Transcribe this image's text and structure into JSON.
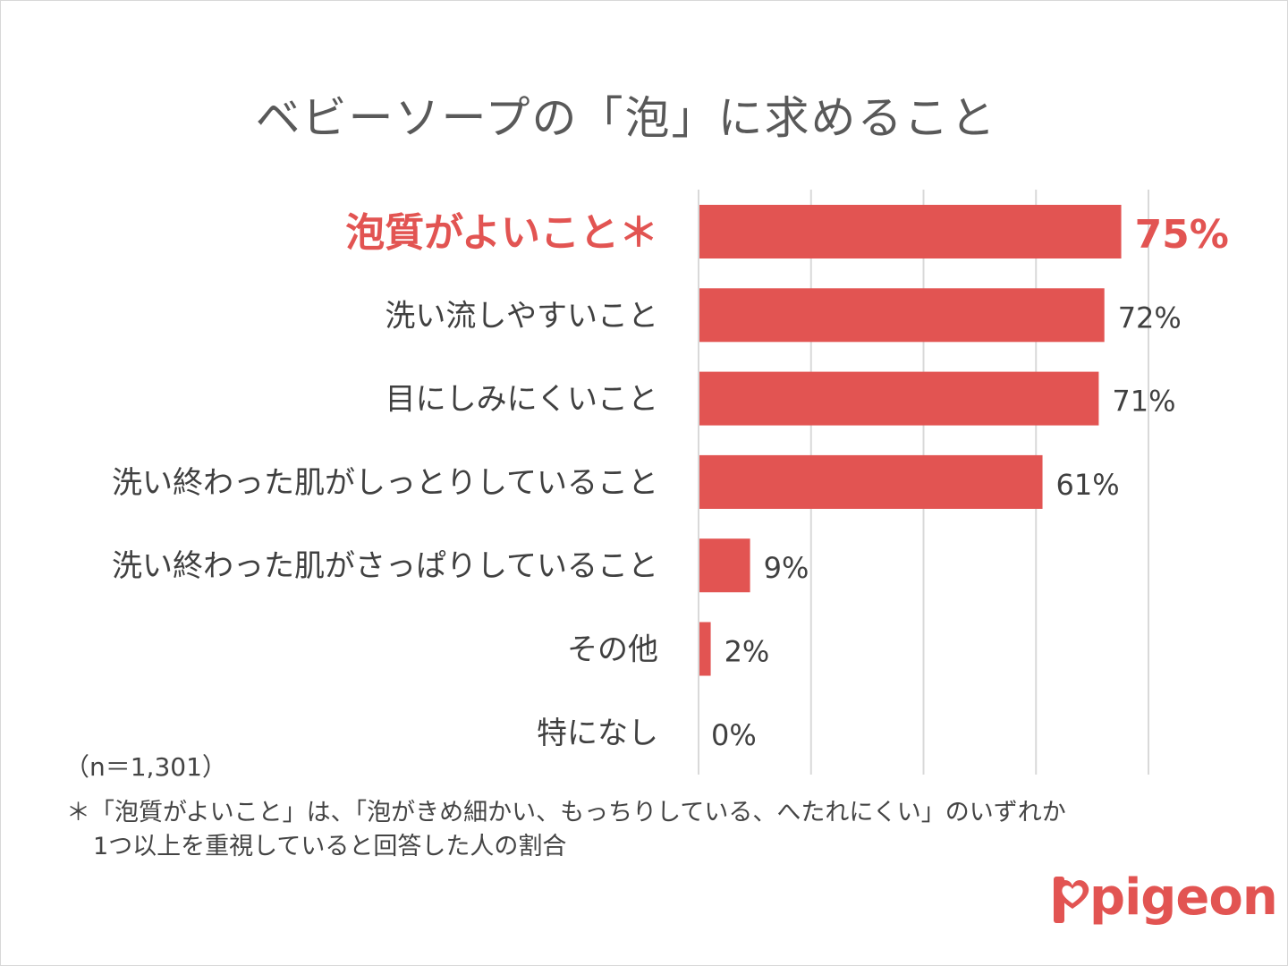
{
  "chart_data": {
    "type": "bar",
    "orientation": "horizontal",
    "title": "ベビーソープの「泡」に求めること",
    "categories": [
      "泡質がよいこと＊",
      "洗い流しやすいこと",
      "目にしみにくいこと",
      "洗い終わった肌がしっとりしていること",
      "洗い終わった肌がさっぱりしていること",
      "その他",
      "特になし"
    ],
    "values": [
      75,
      72,
      71,
      61,
      9,
      2,
      0
    ],
    "value_labels": [
      "75%",
      "72%",
      "71%",
      "61%",
      "9%",
      "2%",
      "0%"
    ],
    "highlight_index": 0,
    "xlim": [
      0,
      80
    ],
    "x_gridlines": [
      0,
      20,
      40,
      60,
      80
    ],
    "grid": true,
    "colors": {
      "bar": "#e25452",
      "highlight_text": "#e25452",
      "text": "#404040",
      "grid": "#d9d9d9"
    }
  },
  "sample_note": "（n＝1,301）",
  "footnote": {
    "line1": "＊「泡質がよいこと」は、「泡がきめ細かい、もっちりしている、へたれにくい」のいずれか",
    "line2": "1つ以上を重視していると回答した人の割合"
  },
  "logo": {
    "text": "pigeon",
    "icon": "heart-icon"
  }
}
